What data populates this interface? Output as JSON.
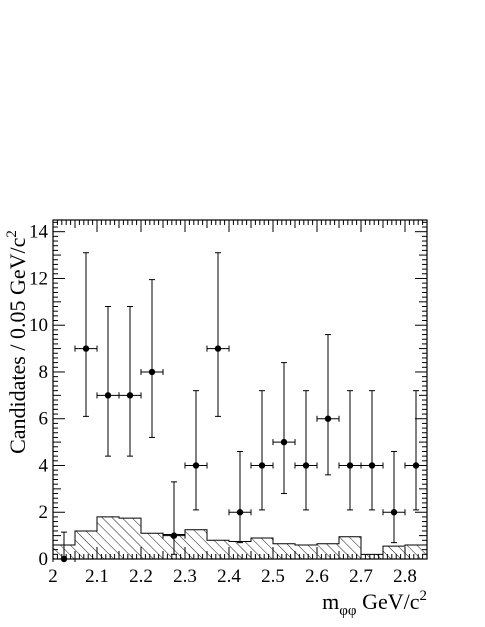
{
  "chart_data": {
    "type": "scatter",
    "xlabel": {
      "main": "m",
      "sub": "φφ",
      "unit": " GeV/c",
      "sup": "2"
    },
    "ylabel": {
      "text": "Candidates / 0.05 GeV/c",
      "sup": "2"
    },
    "xlim": [
      2.0,
      2.85
    ],
    "ylim": [
      0,
      14.5
    ],
    "x_ticks": [
      2,
      2.1,
      2.2,
      2.3,
      2.4,
      2.5,
      2.6,
      2.7,
      2.8
    ],
    "x_tick_labels": [
      "2",
      "2.1",
      "2.2",
      "2.3",
      "2.4",
      "2.5",
      "2.6",
      "2.7",
      "2.8"
    ],
    "y_ticks": [
      0,
      2,
      4,
      6,
      8,
      10,
      12,
      14
    ],
    "y_tick_labels": [
      "0",
      "2",
      "4",
      "6",
      "8",
      "10",
      "12",
      "14"
    ],
    "bin_width": 0.05,
    "series": [
      {
        "kind": "points",
        "x": [
          2.025,
          2.075,
          2.125,
          2.175,
          2.225,
          2.275,
          2.325,
          2.375,
          2.425,
          2.475,
          2.525,
          2.575,
          2.625,
          2.675,
          2.725,
          2.775,
          2.825
        ],
        "values": [
          0,
          9,
          7,
          7,
          8,
          1,
          4,
          9,
          2,
          4,
          5,
          4,
          6,
          4,
          4,
          2,
          4
        ],
        "err_low": [
          0,
          2.9,
          2.6,
          2.6,
          2.8,
          0.8,
          1.9,
          2.9,
          1.3,
          1.9,
          2.2,
          1.9,
          2.4,
          1.9,
          1.9,
          1.3,
          1.9
        ],
        "err_high": [
          1.15,
          4.1,
          3.8,
          3.8,
          3.95,
          2.3,
          3.2,
          4.1,
          2.6,
          3.2,
          3.4,
          3.2,
          3.6,
          3.2,
          3.2,
          2.6,
          3.2
        ]
      },
      {
        "kind": "hatched_histogram",
        "x": [
          2.0,
          2.05,
          2.1,
          2.15,
          2.2,
          2.25,
          2.3,
          2.35,
          2.4,
          2.45,
          2.5,
          2.55,
          2.6,
          2.65,
          2.7,
          2.75,
          2.8
        ],
        "values": [
          0.6,
          1.2,
          1.8,
          1.75,
          1.1,
          1.05,
          1.25,
          0.8,
          0.75,
          0.9,
          0.65,
          0.6,
          0.65,
          0.95,
          0.2,
          0.55,
          0.6
        ]
      }
    ]
  }
}
